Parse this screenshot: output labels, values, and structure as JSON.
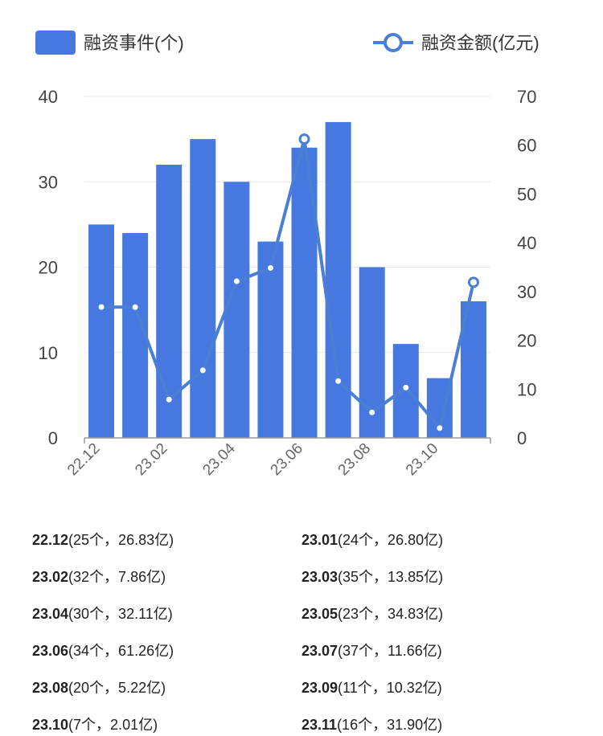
{
  "chart_data": {
    "type": "bar+line",
    "categories": [
      "22.12",
      "23.01",
      "23.02",
      "23.03",
      "23.04",
      "23.05",
      "23.06",
      "23.07",
      "23.08",
      "23.09",
      "23.10",
      "23.11"
    ],
    "x_tick_labels": [
      "22.12",
      "23.02",
      "23.04",
      "23.06",
      "23.08",
      "23.10"
    ],
    "series": [
      {
        "name": "融资事件(个)",
        "type": "bar",
        "axis": "left",
        "values": [
          25,
          24,
          32,
          35,
          30,
          23,
          34,
          37,
          20,
          11,
          7,
          16
        ]
      },
      {
        "name": "融资金额(亿元)",
        "type": "line",
        "axis": "right",
        "values": [
          26.83,
          26.8,
          7.86,
          13.85,
          32.11,
          34.83,
          61.26,
          11.66,
          5.22,
          10.32,
          2.01,
          31.9
        ]
      }
    ],
    "left_axis": {
      "ylim": [
        0,
        40
      ],
      "ticks": [
        "0",
        "10",
        "20",
        "30",
        "40"
      ]
    },
    "right_axis": {
      "ylim": [
        0,
        70
      ],
      "ticks": [
        "0",
        "10",
        "20",
        "30",
        "40",
        "50",
        "60",
        "70"
      ]
    },
    "legend_placement": "top",
    "grid": true,
    "colors": {
      "bar": "#4678e0",
      "line": "#4a7fd4",
      "grid": "#e8e8e8",
      "axis": "#999999"
    }
  },
  "summary": [
    {
      "month": "22.12",
      "detail": "(25个，26.83亿)"
    },
    {
      "month": "23.01",
      "detail": "(24个，26.80亿)"
    },
    {
      "month": "23.02",
      "detail": "(32个，7.86亿)"
    },
    {
      "month": "23.03",
      "detail": "(35个，13.85亿)"
    },
    {
      "month": "23.04",
      "detail": "(30个，32.11亿)"
    },
    {
      "month": "23.05",
      "detail": "(23个，34.83亿)"
    },
    {
      "month": "23.06",
      "detail": "(34个，61.26亿)"
    },
    {
      "month": "23.07",
      "detail": "(37个，11.66亿)"
    },
    {
      "month": "23.08",
      "detail": "(20个，5.22亿)"
    },
    {
      "month": "23.09",
      "detail": "(11个，10.32亿)"
    },
    {
      "month": "23.10",
      "detail": "(7个，2.01亿)"
    },
    {
      "month": "23.11",
      "detail": "(16个，31.90亿)"
    }
  ]
}
